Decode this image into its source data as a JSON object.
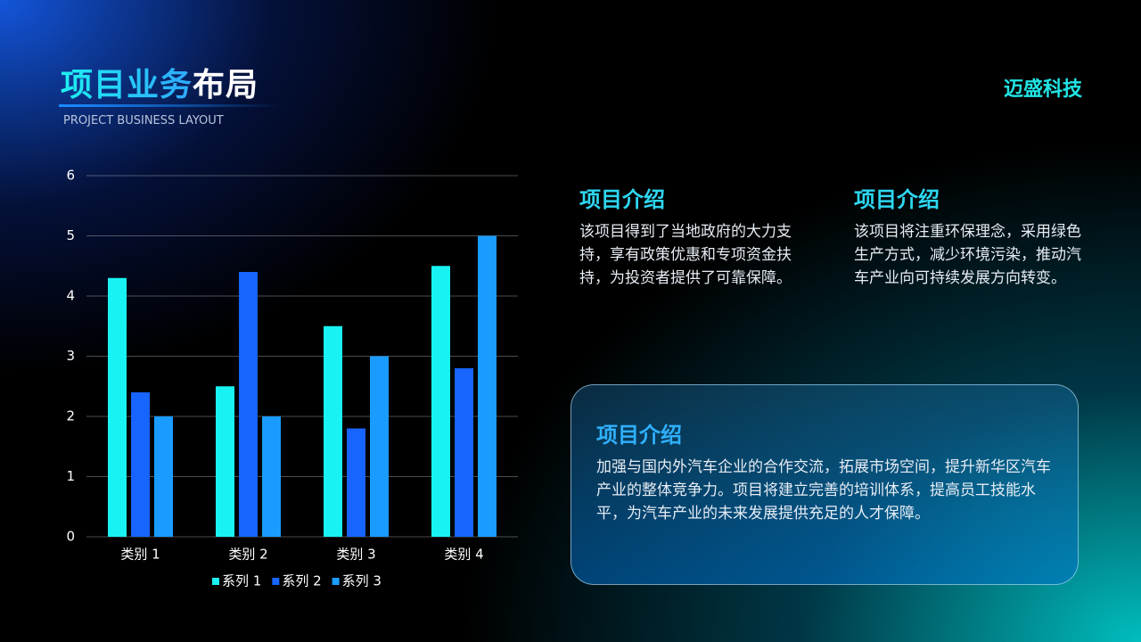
{
  "header": {
    "title_highlight": "项目业务",
    "title_rest": "布局",
    "subtitle": "PROJECT BUSINESS LAYOUT",
    "brand": "迈盛科技"
  },
  "chart_data": {
    "type": "bar",
    "categories": [
      "类别 1",
      "类别 2",
      "类别 3",
      "类别 4"
    ],
    "series": [
      {
        "name": "系列 1",
        "color": "#19f2f2",
        "values": [
          4.3,
          2.5,
          3.5,
          4.5
        ]
      },
      {
        "name": "系列 2",
        "color": "#1764ff",
        "values": [
          2.4,
          4.4,
          1.8,
          2.8
        ]
      },
      {
        "name": "系列 3",
        "color": "#1a9cff",
        "values": [
          2,
          2,
          3,
          5
        ]
      }
    ],
    "ylim": [
      0,
      6
    ],
    "yticks": [
      0,
      1,
      2,
      3,
      4,
      5,
      6
    ],
    "grid": true,
    "legend": "bottom"
  },
  "cards": [
    {
      "title": "项目介绍",
      "body": "该项目得到了当地政府的大力支持，享有政策优惠和专项资金扶持，为投资者提供了可靠保障。"
    },
    {
      "title": "项目介绍",
      "body": "该项目将注重环保理念，采用绿色生产方式，减少环境污染，推动汽车产业向可持续发展方向转变。"
    },
    {
      "title": "项目介绍",
      "body": "加强与国内外汽车企业的合作交流，拓展市场空间，提升新华区汽车产业的整体竞争力。项目将建立完善的培训体系，提高员工技能水平，为汽车产业的未来发展提供充足的人才保障。"
    }
  ]
}
